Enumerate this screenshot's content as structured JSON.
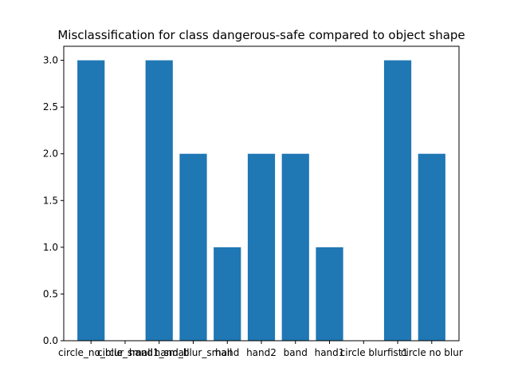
{
  "chart_data": {
    "type": "bar",
    "title": "Misclassification for class dangerous-safe compared to object shape",
    "xlabel": "",
    "ylabel": "",
    "categories": [
      "circle_no_blur",
      "circle_small",
      "hand1_small",
      "hand_blur_small",
      "hand",
      "hand2",
      "band",
      "hand1",
      "circle blur",
      "fist1",
      "circle no blur"
    ],
    "values": [
      3,
      0,
      3,
      2,
      1,
      2,
      2,
      1,
      0,
      3,
      2
    ],
    "ylim": [
      0,
      3.15
    ],
    "yticks": [
      0.0,
      0.5,
      1.0,
      1.5,
      2.0,
      2.5,
      3.0
    ],
    "ytick_labels": [
      "0.0",
      "0.5",
      "1.0",
      "1.5",
      "2.0",
      "2.5",
      "3.0"
    ],
    "bar_color": "#1f77b4",
    "grid": false
  }
}
